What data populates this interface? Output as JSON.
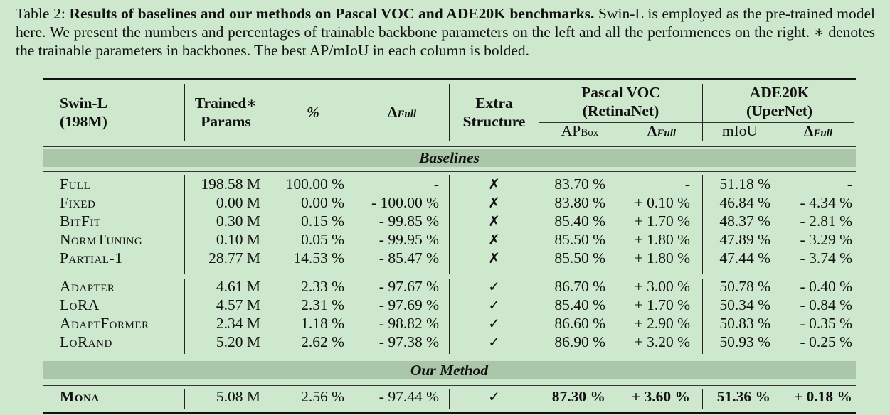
{
  "caption": {
    "label": "Table 2:",
    "bold": "Results of baselines and our methods on Pascal VOC and ADE20K benchmarks.",
    "rest": "Swin-L is employed as the pre-trained model here. We present the numbers and percentages of trainable backbone parameters on the left and all the performences on the right. ∗ denotes the trainable parameters in backbones. The best AP/mIoU in each column is bolded."
  },
  "header": {
    "model_line1": "Swin-L",
    "model_line2": "(198M)",
    "params_line1": "Trained∗",
    "params_line2": "Params",
    "pct": "%",
    "delta": "Δ",
    "delta_sub": "Full",
    "extra_line1": "Extra",
    "extra_line2": "Structure",
    "voc_line1": "Pascal VOC",
    "voc_line2": "(RetinaNet)",
    "voc_ap": "AP",
    "voc_ap_sub": "Box",
    "ade_line1": "ADE20K",
    "ade_line2": "(UperNet)",
    "ade_miou": "mIoU"
  },
  "sections": {
    "baselines": "Baselines",
    "our_method": "Our Method"
  },
  "rows": [
    {
      "name": "Full",
      "params": "198.58 M",
      "pct": "100.00 %",
      "delta": "-",
      "extra": "✗",
      "ap": "83.70 %",
      "ap_delta": "-",
      "miou": "51.18 %",
      "miou_delta": "-"
    },
    {
      "name": "Fixed",
      "params": "0.00 M",
      "pct": "0.00 %",
      "delta": "- 100.00 %",
      "extra": "✗",
      "ap": "83.80 %",
      "ap_delta": "+ 0.10 %",
      "miou": "46.84 %",
      "miou_delta": "- 4.34 %"
    },
    {
      "name": "BitFit",
      "params": "0.30 M",
      "pct": "0.15 %",
      "delta": "- 99.85 %",
      "extra": "✗",
      "ap": "85.40 %",
      "ap_delta": "+ 1.70 %",
      "miou": "48.37 %",
      "miou_delta": "- 2.81 %"
    },
    {
      "name": "NormTuning",
      "params": "0.10 M",
      "pct": "0.05 %",
      "delta": "- 99.95 %",
      "extra": "✗",
      "ap": "85.50 %",
      "ap_delta": "+ 1.80 %",
      "miou": "47.89 %",
      "miou_delta": "- 3.29 %"
    },
    {
      "name": "Partial-1",
      "params": "28.77 M",
      "pct": "14.53 %",
      "delta": "- 85.47 %",
      "extra": "✗",
      "ap": "85.50 %",
      "ap_delta": "+ 1.80 %",
      "miou": "47.44 %",
      "miou_delta": "- 3.74 %"
    },
    {
      "name": "Adapter",
      "params": "4.61 M",
      "pct": "2.33 %",
      "delta": "- 97.67 %",
      "extra": "✓",
      "ap": "86.70 %",
      "ap_delta": "+ 3.00 %",
      "miou": "50.78 %",
      "miou_delta": "- 0.40 %"
    },
    {
      "name": "LoRA",
      "params": "4.57 M",
      "pct": "2.31 %",
      "delta": "- 97.69 %",
      "extra": "✓",
      "ap": "85.40 %",
      "ap_delta": "+ 1.70 %",
      "miou": "50.34 %",
      "miou_delta": "- 0.84 %"
    },
    {
      "name": "AdaptFormer",
      "params": "2.34 M",
      "pct": "1.18 %",
      "delta": "- 98.82 %",
      "extra": "✓",
      "ap": "86.60 %",
      "ap_delta": "+ 2.90 %",
      "miou": "50.83 %",
      "miou_delta": "- 0.35 %"
    },
    {
      "name": "LoRand",
      "params": "5.20 M",
      "pct": "2.62 %",
      "delta": "- 97.38 %",
      "extra": "✓",
      "ap": "86.90 %",
      "ap_delta": "+ 3.20 %",
      "miou": "50.93 %",
      "miou_delta": "- 0.25 %"
    },
    {
      "name": "Mona",
      "params": "5.08 M",
      "pct": "2.56 %",
      "delta": "- 97.44 %",
      "extra": "✓",
      "ap": "87.30 %",
      "ap_delta": "+ 3.60 %",
      "miou": "51.36 %",
      "miou_delta": "+ 0.18 %"
    }
  ]
}
